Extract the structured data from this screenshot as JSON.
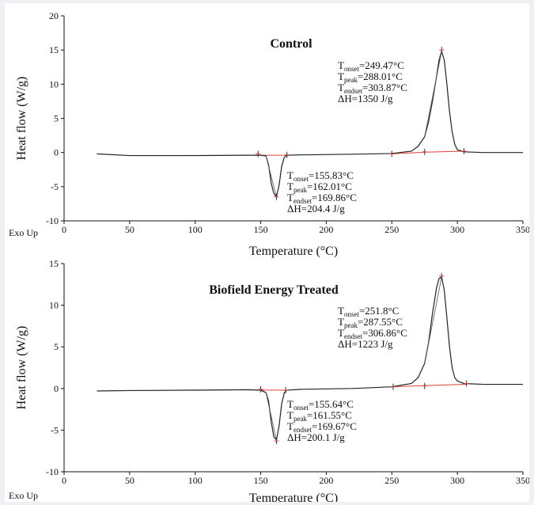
{
  "chart_data": [
    {
      "type": "line",
      "title": "Control",
      "xlabel": "Temperature (°C)",
      "ylabel": "Heat flow (W/g)",
      "corner_label": "Exo Up",
      "xlim": [
        0,
        350
      ],
      "ylim": [
        -10,
        20
      ],
      "xticks": [
        0,
        50,
        100,
        150,
        200,
        250,
        300,
        350
      ],
      "yticks": [
        -10,
        -5,
        0,
        5,
        10,
        15,
        20
      ],
      "colors": {
        "sample": "#222222",
        "baseline": "#e0413a"
      },
      "series": [
        {
          "x": [
            25,
            50,
            100,
            140,
            150,
            154,
            156,
            158,
            160,
            162,
            164,
            166,
            168,
            170,
            180,
            220,
            250,
            265,
            270,
            275,
            278,
            281,
            284,
            286,
            288,
            290,
            292,
            294,
            296,
            298,
            300,
            305,
            320,
            350
          ],
          "y": [
            -0.2,
            -0.45,
            -0.45,
            -0.4,
            -0.4,
            -0.5,
            -1.8,
            -4.5,
            -6.0,
            -6.5,
            -4.8,
            -2.0,
            -0.7,
            -0.4,
            -0.35,
            -0.25,
            -0.15,
            0.2,
            0.9,
            2.3,
            4.5,
            7.5,
            11.0,
            13.5,
            14.8,
            13.5,
            10.0,
            6.0,
            3.0,
            1.2,
            0.4,
            0.1,
            0.0,
            0.0
          ]
        }
      ],
      "baselines": [
        {
          "x": [
            150,
            170
          ],
          "y": [
            -0.4,
            -0.4
          ]
        },
        {
          "x": [
            250,
            275,
            305
          ],
          "y": [
            -0.2,
            0.05,
            0.2
          ]
        }
      ],
      "markers": [
        {
          "x": 148,
          "y": -0.2
        },
        {
          "x": 170,
          "y": -0.35
        },
        {
          "x": 162,
          "y": -6.5
        },
        {
          "x": 250,
          "y": -0.2
        },
        {
          "x": 275,
          "y": 0.1
        },
        {
          "x": 305,
          "y": 0.2
        },
        {
          "x": 288,
          "y": 15.0
        }
      ],
      "annotations": [
        {
          "lines": [
            [
              "T",
              "onset",
              "=249.47°C"
            ],
            [
              "T",
              "peak",
              "=288.01°C"
            ],
            [
              "T",
              "endset",
              "=303.87°C"
            ],
            [
              "ΔH=1350 J/g"
            ]
          ]
        },
        {
          "lines": [
            [
              "T",
              "onset",
              "=155.83°C"
            ],
            [
              "T",
              "peak",
              "=162.01°C"
            ],
            [
              "T",
              "endset",
              "=169.86°C"
            ],
            [
              "ΔH=204.4 J/g"
            ]
          ]
        }
      ]
    },
    {
      "type": "line",
      "title": "Biofield Energy Treated",
      "xlabel": "Temperature (°C)",
      "ylabel": "Heat flow (W/g)",
      "corner_label": "Exo Up",
      "xlim": [
        0,
        350
      ],
      "ylim": [
        -10,
        15
      ],
      "xticks": [
        0,
        50,
        100,
        150,
        200,
        250,
        300,
        350
      ],
      "yticks": [
        -10,
        -5,
        0,
        5,
        10,
        15
      ],
      "colors": {
        "sample": "#222222",
        "baseline": "#e0413a"
      },
      "series": [
        {
          "x": [
            25,
            50,
            100,
            140,
            150,
            154,
            156,
            158,
            160,
            162,
            164,
            166,
            168,
            170,
            180,
            220,
            250,
            265,
            270,
            275,
            278,
            281,
            284,
            286,
            288,
            290,
            292,
            294,
            296,
            298,
            300,
            305,
            320,
            350
          ],
          "y": [
            -0.3,
            -0.25,
            -0.2,
            -0.15,
            -0.2,
            -0.5,
            -1.5,
            -4.0,
            -5.8,
            -6.2,
            -4.5,
            -1.8,
            -0.5,
            -0.2,
            -0.1,
            0.0,
            0.2,
            0.6,
            1.3,
            3.0,
            5.5,
            9.0,
            12.0,
            13.2,
            13.4,
            11.8,
            8.5,
            5.0,
            2.5,
            1.3,
            0.9,
            0.6,
            0.5,
            0.5
          ]
        }
      ],
      "baselines": [
        {
          "x": [
            150,
            170
          ],
          "y": [
            -0.2,
            -0.2
          ]
        },
        {
          "x": [
            250,
            275,
            307
          ],
          "y": [
            0.2,
            0.35,
            0.5
          ]
        }
      ],
      "markers": [
        {
          "x": 150,
          "y": -0.1
        },
        {
          "x": 169,
          "y": -0.2
        },
        {
          "x": 162,
          "y": -6.3
        },
        {
          "x": 251,
          "y": 0.2
        },
        {
          "x": 275,
          "y": 0.3
        },
        {
          "x": 307,
          "y": 0.6
        },
        {
          "x": 288,
          "y": 13.5
        }
      ],
      "annotations": [
        {
          "lines": [
            [
              "T",
              "onset",
              "=251.8°C"
            ],
            [
              "T",
              "peak",
              "=287.55°C"
            ],
            [
              "T",
              "endset",
              "=306.86°C"
            ],
            [
              "ΔH=1223 J/g"
            ]
          ]
        },
        {
          "lines": [
            [
              "T",
              "onset",
              "=155.64°C"
            ],
            [
              "T",
              "peak",
              "=161.55°C"
            ],
            [
              "T",
              "endset",
              "=169.67°C"
            ],
            [
              "ΔH=200.1 J/g"
            ]
          ]
        }
      ]
    }
  ]
}
